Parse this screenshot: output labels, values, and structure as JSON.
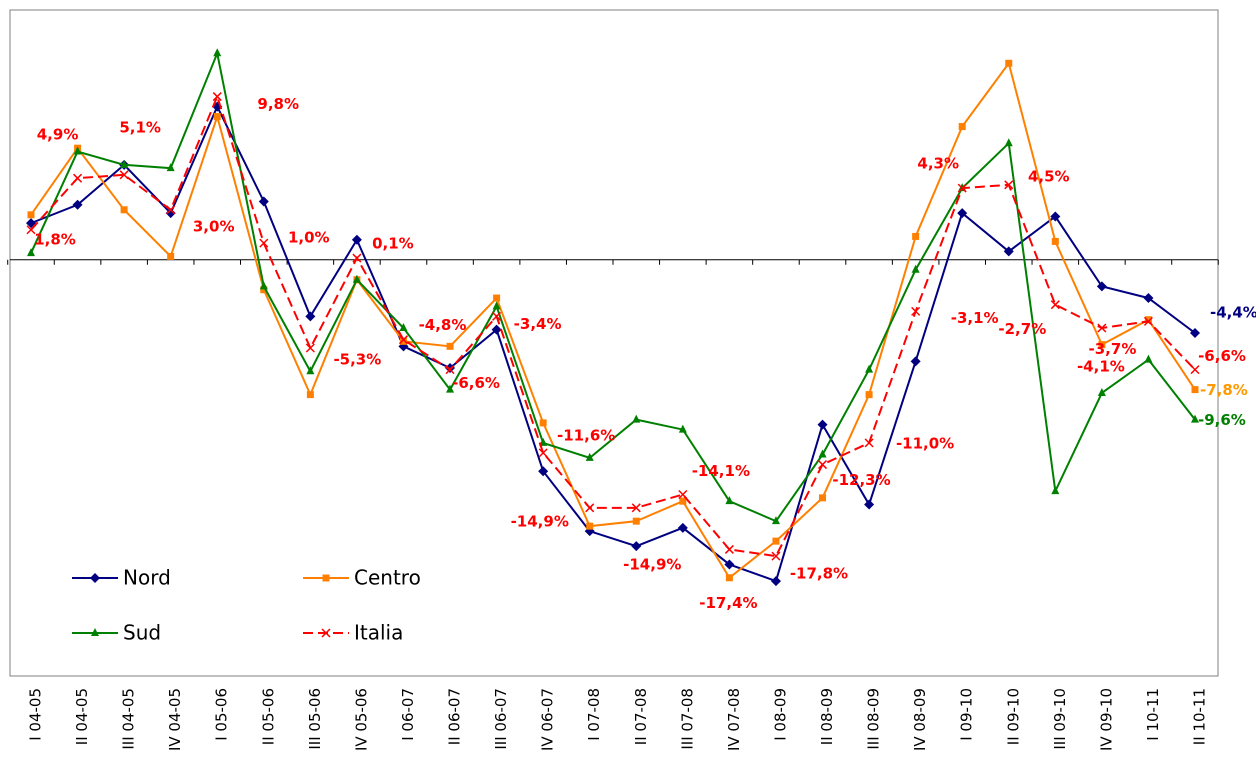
{
  "chart_data": {
    "type": "line",
    "categories": [
      "I 04-05",
      "II 04-05",
      "III 04-05",
      "IV 04-05",
      "I 05-06",
      "II 05-06",
      "III 05-06",
      "IV 05-06",
      "I 06-07",
      "II 06-07",
      "III 06-07",
      "IV 06-07",
      "I 07-08",
      "II 07-08",
      "III 07-08",
      "IV 07-08",
      "I 08-09",
      "II 08-09",
      "III 08-09",
      "IV 08-09",
      "I 09-10",
      "II 09-10",
      "III 09-10",
      "IV 09-10",
      "I 10-11",
      "II 10-11"
    ],
    "ylim": [
      -25,
      15
    ],
    "legend": "lower left",
    "series": [
      {
        "name": "Nord",
        "color": "#000080",
        "marker": "diamond",
        "dashed": false,
        "values": [
          2.2,
          3.3,
          5.7,
          2.8,
          9.2,
          3.5,
          -3.4,
          1.2,
          -5.2,
          -6.5,
          -4.2,
          -12.7,
          -16.3,
          -17.2,
          -16.1,
          -18.3,
          -19.3,
          -9.9,
          -14.7,
          -6.1,
          2.8,
          0.5,
          2.6,
          -1.6,
          -2.3,
          -4.4
        ],
        "value_labels": [
          null,
          null,
          null,
          null,
          null,
          null,
          null,
          null,
          null,
          null,
          null,
          null,
          null,
          null,
          null,
          null,
          null,
          null,
          null,
          null,
          null,
          null,
          null,
          null,
          null,
          "-4,4%"
        ]
      },
      {
        "name": "Centro",
        "color": "#ff8000",
        "marker": "square",
        "dashed": false,
        "values": [
          2.7,
          6.7,
          3.0,
          0.2,
          8.6,
          -1.8,
          -8.1,
          -1.2,
          -4.9,
          -5.2,
          -2.3,
          -9.8,
          -16.0,
          -15.7,
          -14.5,
          -19.1,
          -16.9,
          -14.3,
          -8.1,
          1.4,
          8.0,
          11.8,
          1.1,
          -5.1,
          -3.6,
          -7.8
        ],
        "value_labels": [
          null,
          null,
          null,
          null,
          null,
          null,
          null,
          null,
          null,
          null,
          null,
          null,
          null,
          null,
          null,
          null,
          null,
          null,
          null,
          null,
          null,
          null,
          null,
          null,
          null,
          "-7,8%"
        ]
      },
      {
        "name": "Sud",
        "color": "#008000",
        "marker": "triangle",
        "dashed": false,
        "values": [
          0.4,
          6.5,
          5.7,
          5.5,
          12.4,
          -1.6,
          -6.7,
          -1.2,
          -4.1,
          -7.8,
          -2.8,
          -11.0,
          -11.9,
          -9.6,
          -10.2,
          -14.5,
          -15.7,
          -11.7,
          -6.6,
          -0.6,
          4.3,
          7.0,
          -13.9,
          -8.0,
          -6.0,
          -9.6
        ],
        "value_labels": [
          null,
          null,
          null,
          null,
          null,
          null,
          null,
          null,
          null,
          null,
          null,
          null,
          null,
          null,
          null,
          null,
          null,
          null,
          null,
          null,
          null,
          null,
          null,
          null,
          null,
          "-9,6%"
        ]
      },
      {
        "name": "Italia",
        "color": "#ff0000",
        "marker": "x",
        "dashed": true,
        "values": [
          1.8,
          4.9,
          5.1,
          3.0,
          9.8,
          1.0,
          -5.3,
          0.1,
          -4.8,
          -6.6,
          -3.4,
          -11.6,
          -14.9,
          -14.9,
          -14.1,
          -17.4,
          -17.8,
          -12.3,
          -11.0,
          -3.1,
          4.3,
          4.5,
          -2.7,
          -4.1,
          -3.7,
          -6.6
        ],
        "value_labels": [
          "1,8%",
          "4,9%",
          "5,1%",
          "3,0%",
          "9,8%",
          "1,0%",
          "-5,3%",
          "0,1%",
          "-4,8%",
          "-6,6%",
          "-3,4%",
          "-11,6%",
          "-14,9%",
          "-14,9%",
          "-14,1%",
          "-17,4%",
          "-17,8%",
          "-12,3%",
          "-11,0%",
          "-3,1%",
          "4,3%",
          "4,5%",
          "-2,7%",
          "-4,1%",
          "-3,7%",
          "-6,6%"
        ]
      }
    ]
  }
}
